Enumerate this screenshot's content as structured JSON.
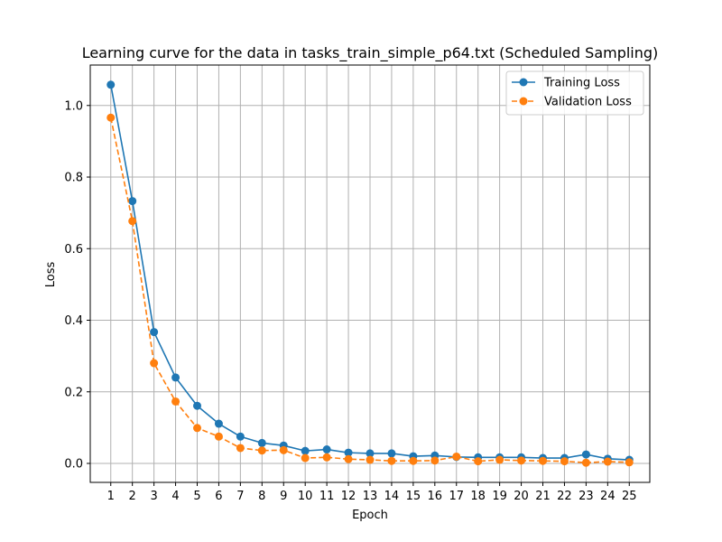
{
  "chart_data": {
    "type": "line",
    "title": "Learning curve for the data in tasks_train_simple_p64.txt (Scheduled Sampling)",
    "xlabel": "Epoch",
    "ylabel": "Loss",
    "x": [
      1,
      2,
      3,
      4,
      5,
      6,
      7,
      8,
      9,
      10,
      11,
      12,
      13,
      14,
      15,
      16,
      17,
      18,
      19,
      20,
      21,
      22,
      23,
      24,
      25
    ],
    "xlim": [
      0.05,
      25.95
    ],
    "ylim": [
      -0.053,
      1.113
    ],
    "yticks": [
      0.0,
      0.2,
      0.4,
      0.6,
      0.8,
      1.0
    ],
    "grid": true,
    "legend_position": "top-right",
    "series": [
      {
        "name": "Training Loss",
        "color": "#1f77b4",
        "line_style": "solid",
        "marker": "circle",
        "values": [
          1.058,
          0.733,
          0.367,
          0.24,
          0.161,
          0.111,
          0.075,
          0.057,
          0.05,
          0.035,
          0.039,
          0.03,
          0.028,
          0.028,
          0.02,
          0.022,
          0.018,
          0.017,
          0.017,
          0.017,
          0.015,
          0.015,
          0.025,
          0.013,
          0.01
        ]
      },
      {
        "name": "Validation Loss",
        "color": "#ff7f0e",
        "line_style": "dashed",
        "marker": "circle",
        "values": [
          0.966,
          0.677,
          0.28,
          0.173,
          0.099,
          0.075,
          0.043,
          0.036,
          0.037,
          0.015,
          0.017,
          0.012,
          0.01,
          0.007,
          0.007,
          0.008,
          0.019,
          0.006,
          0.01,
          0.008,
          0.007,
          0.006,
          0.002,
          0.005,
          0.003
        ]
      }
    ]
  }
}
